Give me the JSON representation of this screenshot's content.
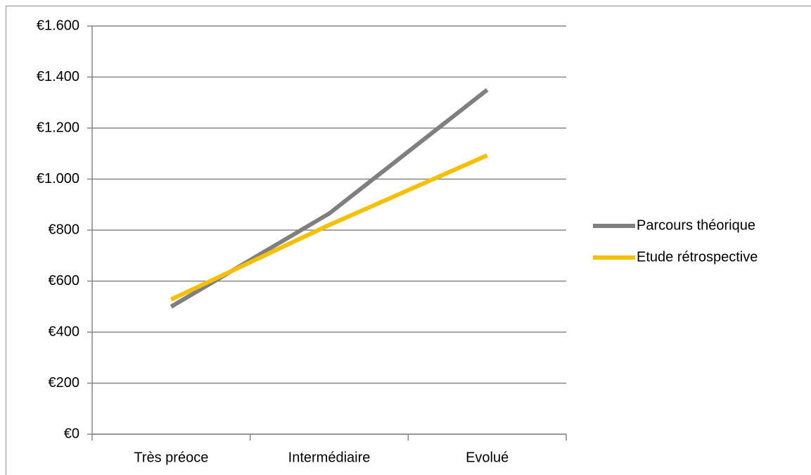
{
  "chart_data": {
    "type": "line",
    "categories": [
      "Très préoce",
      "Intermédiaire",
      "Evolué"
    ],
    "series": [
      {
        "name": "Parcours théorique",
        "color": "#7f7f7f",
        "values": [
          500,
          865,
          1350
        ]
      },
      {
        "name": "Etude rétrospective",
        "color": "#f5c000",
        "values": [
          528,
          820,
          1093
        ]
      }
    ],
    "ylim": [
      0,
      1600
    ],
    "yticks": [
      {
        "value": 0,
        "label": "€0"
      },
      {
        "value": 200,
        "label": "€200"
      },
      {
        "value": 400,
        "label": "€400"
      },
      {
        "value": 600,
        "label": "€600"
      },
      {
        "value": 800,
        "label": "€800"
      },
      {
        "value": 1000,
        "label": "€1.000"
      },
      {
        "value": 1200,
        "label": "€1.200"
      },
      {
        "value": 1400,
        "label": "€1.400"
      },
      {
        "value": 1600,
        "label": "€1.600"
      }
    ],
    "grid": true,
    "legend": "right"
  }
}
